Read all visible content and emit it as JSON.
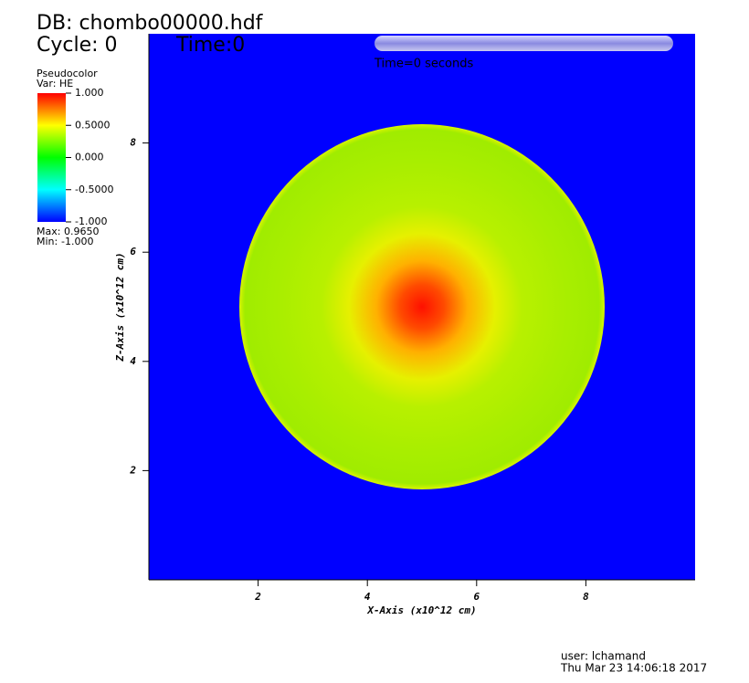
{
  "chart_data": {
    "type": "pseudocolor",
    "db_title": "DB: chombo00000.hdf",
    "cycle": "Cycle: 0",
    "time": "Time:0",
    "time_slider_label": "Time=0 seconds",
    "legend_title": "Pseudocolor",
    "variable": "Var: HE",
    "colorbar_ticks": [
      {
        "value": 1,
        "label": "1.000"
      },
      {
        "value": 0.5,
        "label": "0.5000"
      },
      {
        "value": 0,
        "label": "0.000"
      },
      {
        "value": -0.5,
        "label": "-0.5000"
      },
      {
        "value": -1,
        "label": "-1.000"
      }
    ],
    "colorbar_lim": [
      -1,
      1
    ],
    "max_label": "Max:",
    "max": {
      "value": 0.965,
      "label": "0.9650"
    },
    "min_label": "Min:",
    "min": {
      "value": -1,
      "label": "-1.000"
    },
    "x_label": "X-Axis (x10^12 cm)",
    "y_label": "Z-Axis (x10^12 cm)",
    "xlim": [
      0,
      10
    ],
    "ylim": [
      0,
      10
    ],
    "xticks": [
      2,
      4,
      6,
      8
    ],
    "yticks": [
      2,
      4,
      6,
      8
    ],
    "user": "user: lchamand",
    "date": "Thu Mar 23 14:06:18 2017"
  }
}
